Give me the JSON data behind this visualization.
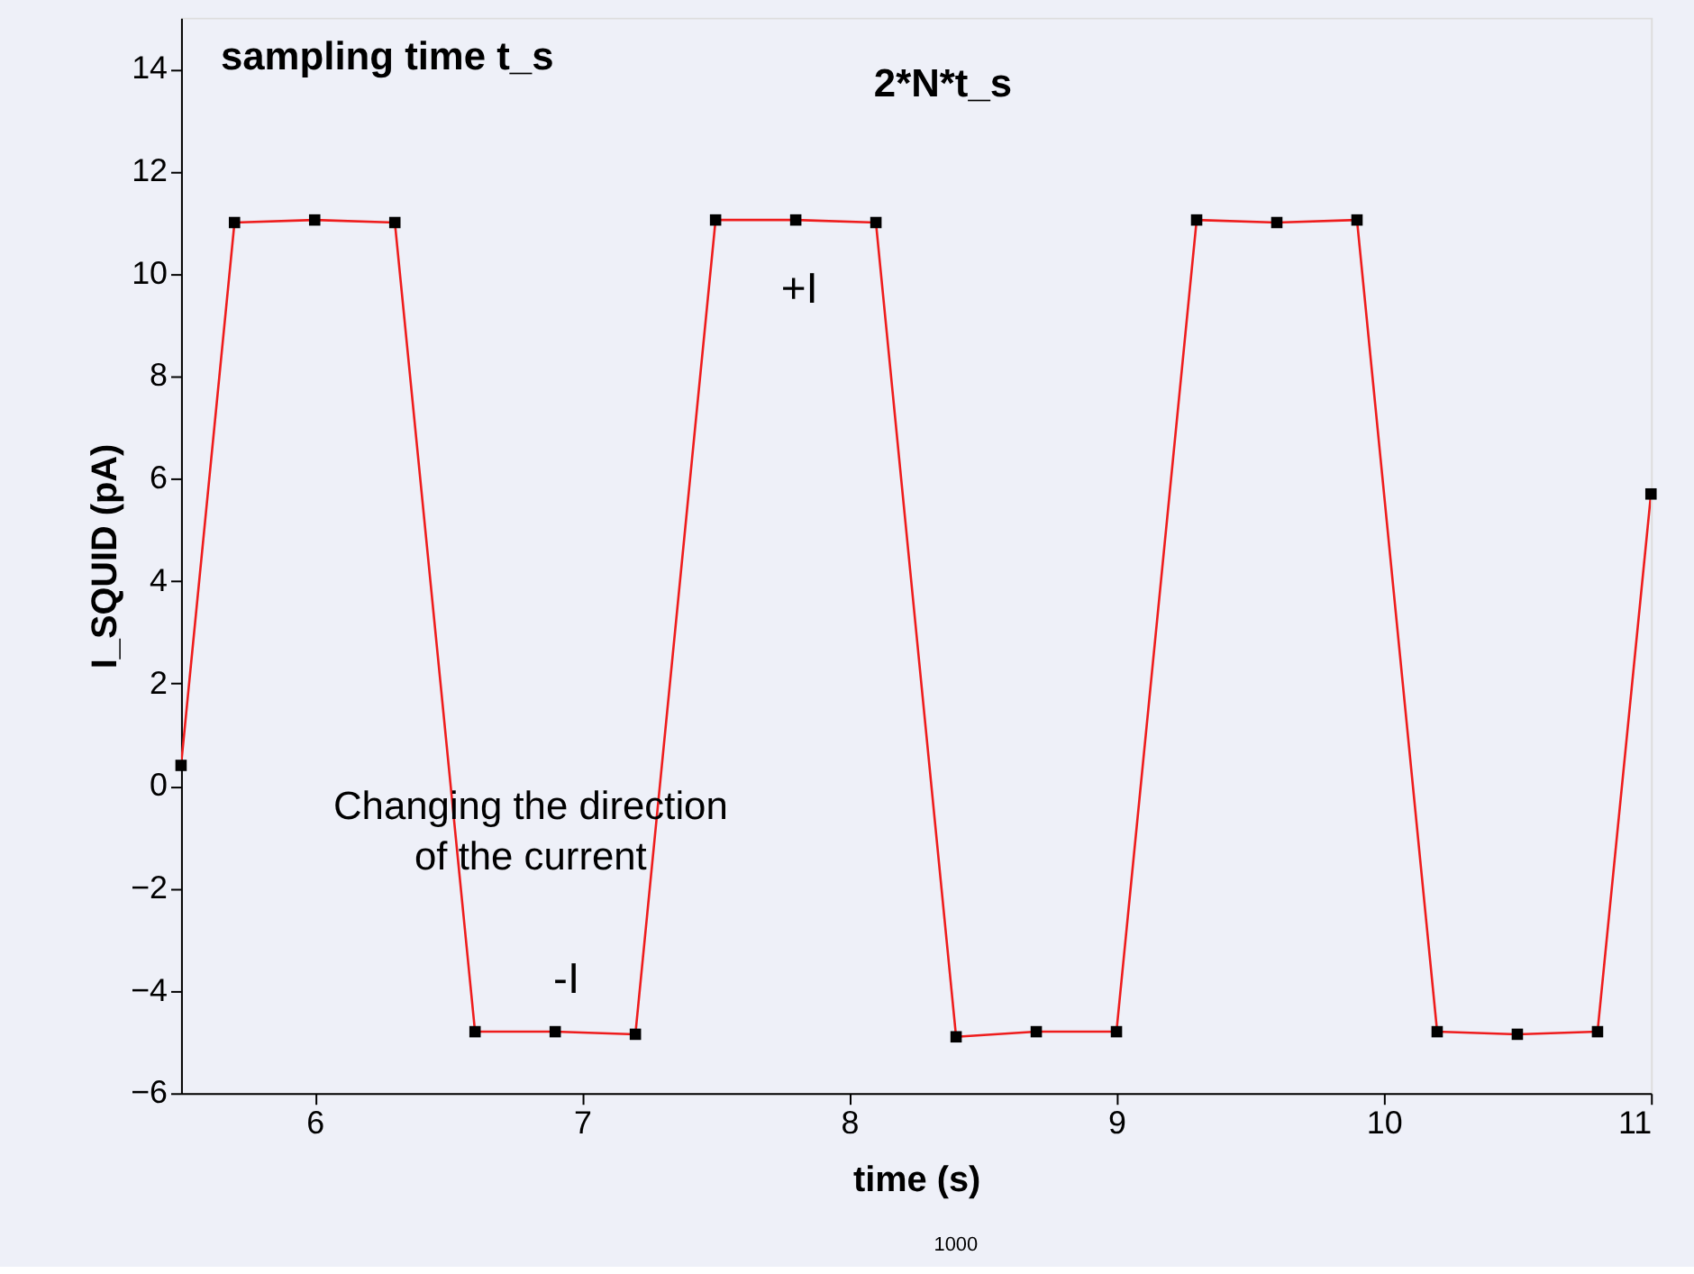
{
  "chart_data": {
    "type": "line",
    "xlabel": "time (s)",
    "ylabel": "I_SQUID (pA)",
    "series": [
      {
        "color": "#ee1c1c",
        "x": [
          5.5,
          5.7,
          6.0,
          6.3,
          6.6,
          6.9,
          7.2,
          7.5,
          7.8,
          8.1,
          8.4,
          8.7,
          9.0,
          9.3,
          9.6,
          9.9,
          10.2,
          10.5,
          10.8,
          11.0
        ],
        "values": [
          0.4,
          11.0,
          11.05,
          11.0,
          -4.8,
          -4.8,
          -4.85,
          11.05,
          11.05,
          11.0,
          -4.9,
          -4.8,
          -4.8,
          11.05,
          11.0,
          11.05,
          -4.8,
          -4.85,
          -4.8,
          5.7
        ]
      }
    ],
    "marker": "square",
    "line_style": "solid",
    "xlim": [
      5.5,
      11
    ],
    "xticks": [
      6,
      7,
      8,
      9,
      10,
      11
    ],
    "ylim": [
      -6,
      15
    ],
    "yticks": [
      -6,
      -4,
      -2,
      0,
      2,
      4,
      6,
      8,
      10,
      12,
      14
    ],
    "grid": false,
    "annotations": [
      "sampling time t_s",
      "2*N*t_s",
      "+I",
      "-I",
      "Changing the direction\nof the current",
      "1000"
    ]
  }
}
